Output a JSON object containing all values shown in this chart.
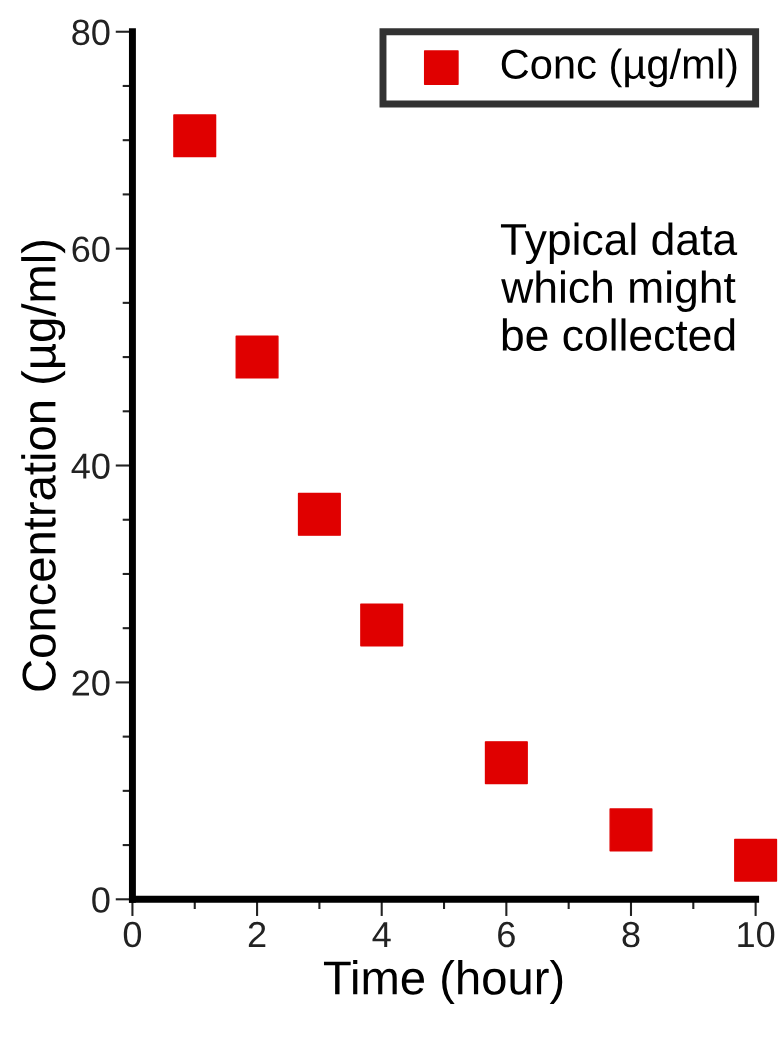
{
  "chart_data": {
    "type": "scatter",
    "xlabel": "Time (hour)",
    "ylabel": "Concentration (µg/ml)",
    "x": [
      1,
      2,
      3,
      4,
      6,
      8,
      10
    ],
    "series": [
      {
        "name": "Conc (µg/ml)",
        "color": "#e00000",
        "values": [
          70.4,
          50,
          35.5,
          25.3,
          12.6,
          6.4,
          3.6
        ]
      }
    ],
    "xlim": [
      0,
      10
    ],
    "ylim": [
      0,
      80
    ],
    "xticks": [
      0,
      2,
      4,
      6,
      8,
      10
    ],
    "yticks": [
      0,
      20,
      40,
      60,
      80
    ],
    "marker": "square",
    "legend": "top right",
    "grid": false,
    "annotations": [
      "Typical data\nwhich might\nbe collected"
    ]
  }
}
